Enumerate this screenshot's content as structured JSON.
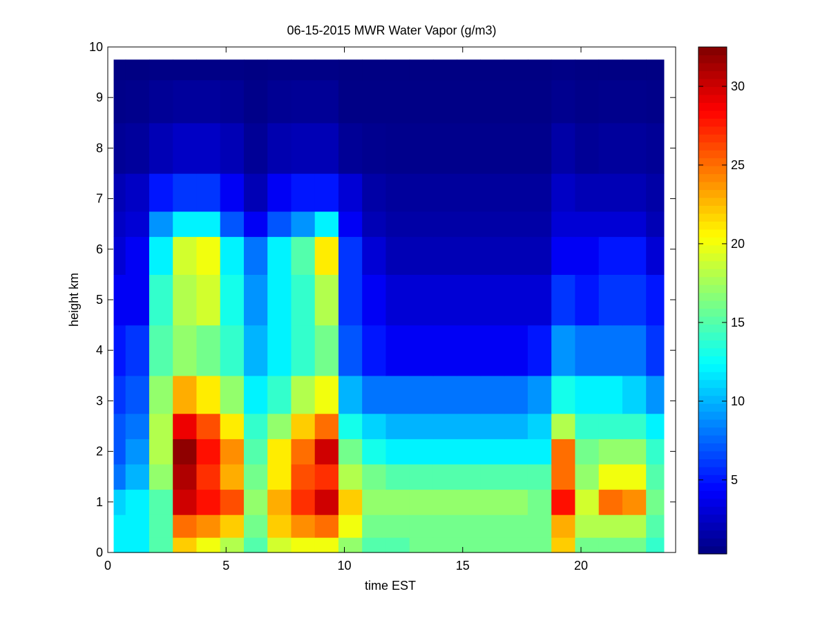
{
  "chart_data": {
    "type": "heatmap",
    "title": "06-15-2015 MWR Water Vapor (g/m3)",
    "xlabel": "time EST",
    "ylabel": "height km",
    "xlim": [
      0,
      24
    ],
    "ylim": [
      0,
      10
    ],
    "x_ticks": [
      "0",
      "5",
      "10",
      "15",
      "20"
    ],
    "y_ticks": [
      "0",
      "1",
      "2",
      "3",
      "4",
      "5",
      "6",
      "7",
      "8",
      "9",
      "10"
    ],
    "colorbar": {
      "colormap": "jet",
      "range": [
        0.3,
        32.5
      ],
      "ticks": [
        "5",
        "10",
        "15",
        "20",
        "25",
        "30"
      ]
    },
    "x": [
      0.25,
      1.25,
      2.25,
      3.25,
      4.25,
      5.25,
      6.25,
      7.25,
      8.25,
      9.25,
      10.25,
      11.25,
      12.25,
      13.25,
      14.25,
      15.25,
      16.25,
      17.25,
      18.25,
      19.25,
      20.25,
      21.25,
      22.25,
      23.25
    ],
    "y": [
      0.1,
      0.5,
      1.0,
      1.5,
      2.0,
      2.5,
      3.0,
      4.0,
      5.0,
      6.0,
      6.5,
      7.0,
      8.0,
      9.0,
      9.7
    ],
    "z": [
      [
        12,
        12,
        15,
        22,
        20,
        18,
        15,
        19,
        20,
        20,
        17,
        15,
        15,
        16,
        16,
        16,
        16,
        16,
        16,
        22,
        16,
        16,
        16,
        14
      ],
      [
        12,
        12,
        15,
        25,
        24,
        22,
        16,
        22,
        24,
        25,
        20,
        16,
        16,
        16,
        16,
        16,
        16,
        16,
        16,
        23,
        18,
        18,
        18,
        15
      ],
      [
        11,
        12,
        15,
        30,
        28,
        26,
        17,
        23,
        27,
        30,
        22,
        17,
        17,
        17,
        17,
        17,
        17,
        17,
        16,
        28,
        19,
        25,
        24,
        16
      ],
      [
        8,
        10,
        17,
        31,
        27,
        23,
        16,
        21,
        26,
        27,
        18,
        16,
        15,
        15,
        15,
        15,
        15,
        15,
        15,
        25,
        17,
        20,
        20,
        15
      ],
      [
        7,
        9,
        18,
        32,
        28,
        24,
        15,
        21,
        25,
        30,
        16,
        13,
        12,
        12,
        12,
        12,
        12,
        12,
        12,
        25,
        16,
        17,
        17,
        14
      ],
      [
        7,
        8,
        18,
        29,
        26,
        21,
        14,
        17,
        22,
        25,
        13,
        11,
        10,
        10,
        10,
        10,
        10,
        10,
        11,
        18,
        14,
        14,
        14,
        12
      ],
      [
        6,
        7,
        17,
        23,
        21,
        17,
        12,
        14,
        18,
        20,
        10,
        8,
        8,
        8,
        8,
        8,
        8,
        8,
        9,
        13,
        12,
        12,
        11,
        9
      ],
      [
        5,
        6,
        15,
        17,
        16,
        14,
        10,
        12,
        14,
        16,
        7,
        5,
        4,
        4,
        4,
        4,
        4,
        4,
        5,
        9,
        8,
        8,
        8,
        6
      ],
      [
        4,
        4,
        14,
        18,
        19,
        13,
        9,
        12,
        14,
        18,
        6,
        4,
        3,
        3,
        3,
        3,
        3,
        3,
        3,
        6,
        5,
        6,
        6,
        5
      ],
      [
        3,
        4,
        12,
        19,
        20,
        12,
        8,
        12,
        15,
        21,
        6,
        3,
        2,
        2,
        2,
        2,
        2,
        2,
        2,
        4,
        4,
        5,
        5,
        3
      ],
      [
        2.5,
        3,
        9,
        12,
        12,
        7,
        4,
        7,
        9,
        12,
        4,
        2,
        1.5,
        1.5,
        1.5,
        1.5,
        1.5,
        1.5,
        1.5,
        3,
        3,
        3,
        3,
        2
      ],
      [
        2,
        2.5,
        5,
        6,
        6,
        4,
        2,
        4,
        5,
        5,
        3,
        1.5,
        1.2,
        1.2,
        1.2,
        1.2,
        1.2,
        1.2,
        1.2,
        2.5,
        2,
        2,
        2,
        1.5
      ],
      [
        1,
        1.2,
        2,
        2.5,
        2.5,
        2,
        1,
        1.8,
        2,
        2,
        1,
        0.8,
        0.7,
        0.7,
        0.7,
        0.7,
        0.7,
        0.7,
        0.7,
        1.5,
        1,
        1.2,
        1.2,
        1
      ],
      [
        0.6,
        0.7,
        1,
        1.2,
        1.2,
        1,
        0.6,
        0.9,
        1,
        1,
        0.5,
        0.5,
        0.5,
        0.5,
        0.5,
        0.5,
        0.5,
        0.5,
        0.5,
        0.8,
        0.6,
        0.7,
        0.7,
        0.6
      ],
      [
        0.4,
        0.4,
        0.5,
        0.5,
        0.5,
        0.5,
        0.4,
        0.5,
        0.5,
        0.5,
        0.4,
        0.4,
        0.4,
        0.4,
        0.4,
        0.4,
        0.4,
        0.4,
        0.4,
        0.5,
        0.4,
        0.4,
        0.4,
        0.4
      ]
    ]
  }
}
